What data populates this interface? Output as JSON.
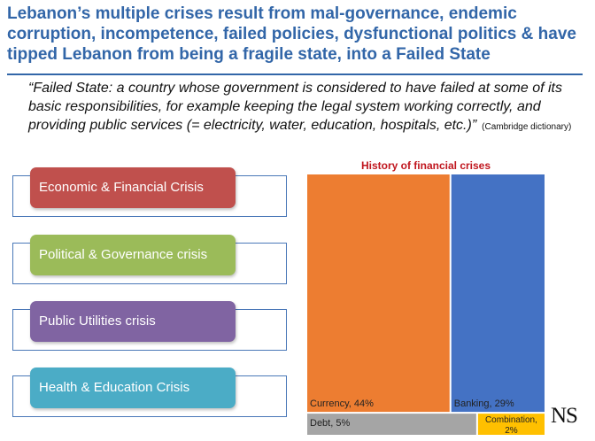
{
  "title": {
    "line1": "Lebanon’s multiple crises result from mal-governance, endemic",
    "line2": "corruption, incompetence, failed policies, dysfunctional politics & have",
    "line3": "tipped Lebanon from being a fragile state, into a Failed State"
  },
  "quote": {
    "text": "“Failed State: a country whose government is considered to have failed at some of its basic responsibilities, for example keeping the legal system working correctly, and providing public services (= electricity, water, education, hospitals, etc.)”",
    "source": "(Cambridge dictionary)"
  },
  "crises": [
    {
      "label": "Economic & Financial Crisis",
      "color": "#c0504d"
    },
    {
      "label": "Political & Governance crisis",
      "color": "#9bbb59"
    },
    {
      "label": "Public Utilities crisis",
      "color": "#8064a2"
    },
    {
      "label": "Health & Education Crisis",
      "color": "#4bacc6"
    }
  ],
  "chart_data": {
    "type": "treemap",
    "title": "History of financial crises",
    "items": [
      {
        "label": "Currency, 44%",
        "name": "Currency",
        "value": 44,
        "color": "#ed7d31"
      },
      {
        "label": "Banking, 29%",
        "name": "Banking",
        "value": 29,
        "color": "#4472c4"
      },
      {
        "label": "Debt, 5%",
        "name": "Debt",
        "value": 5,
        "color": "#a5a5a5"
      },
      {
        "label": "Combination, 2%",
        "name": "Combination",
        "value": 2,
        "color": "#ffc000"
      }
    ]
  },
  "logo_text": "NS"
}
